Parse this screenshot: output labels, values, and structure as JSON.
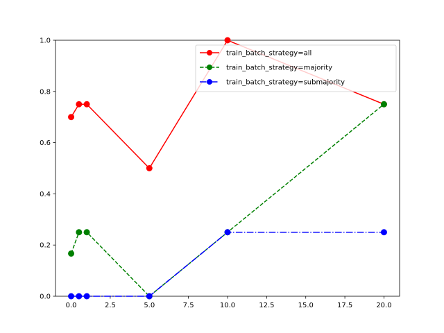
{
  "chart_data": {
    "type": "line",
    "title": "",
    "xlabel": "",
    "ylabel": "",
    "xlim": [
      -1.0,
      21.0
    ],
    "ylim": [
      0.0,
      1.0
    ],
    "x_ticks": [
      0.0,
      2.5,
      5.0,
      7.5,
      10.0,
      12.5,
      15.0,
      17.5,
      20.0
    ],
    "x_tick_labels": [
      "0.0",
      "2.5",
      "5.0",
      "7.5",
      "10.0",
      "12.5",
      "15.0",
      "17.5",
      "20.0"
    ],
    "y_ticks": [
      0.0,
      0.2,
      0.4,
      0.6,
      0.8,
      1.0
    ],
    "y_tick_labels": [
      "0.0",
      "0.2",
      "0.4",
      "0.6",
      "0.8",
      "1.0"
    ],
    "grid": false,
    "legend_position": "top-right",
    "x": [
      0,
      0.5,
      1,
      5,
      10,
      20
    ],
    "series": [
      {
        "name": "train_batch_strategy=all",
        "values": [
          0.7,
          0.75,
          0.75,
          0.5,
          1.0,
          0.75
        ],
        "color": "#ff0000",
        "line_style": "solid",
        "marker": "circle"
      },
      {
        "name": "train_batch_strategy=majority",
        "values": [
          0.1667,
          0.25,
          0.25,
          0.0,
          0.25,
          0.75
        ],
        "color": "#008000",
        "line_style": "dashed",
        "marker": "circle"
      },
      {
        "name": "train_batch_strategy=submajority",
        "values": [
          0.0,
          0.0,
          0.0,
          0.0,
          0.25,
          0.25
        ],
        "color": "#0000ff",
        "line_style": "dashdot",
        "marker": "circle"
      }
    ]
  }
}
